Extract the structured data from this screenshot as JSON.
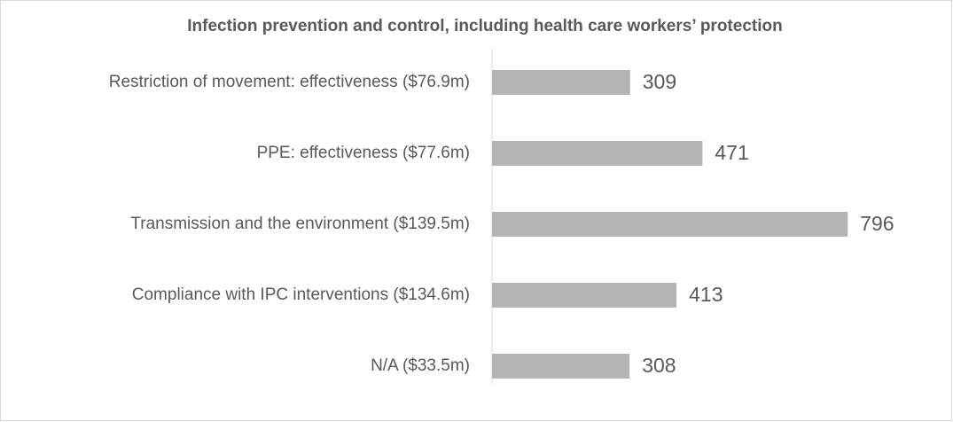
{
  "chart_data": {
    "type": "bar",
    "orientation": "horizontal",
    "title": "Infection prevention and control, including health care workers’ protection",
    "categories": [
      "Restriction of movement: effectiveness ($76.9m)",
      "PPE: effectiveness ($77.6m)",
      "Transmission and the environment ($139.5m)",
      "Compliance with IPC interventions ($134.6m)",
      "N/A ($33.5m)"
    ],
    "values": [
      309,
      471,
      796,
      413,
      308
    ],
    "color": "#b4b4b4",
    "xlim": [
      0,
      1000
    ]
  }
}
